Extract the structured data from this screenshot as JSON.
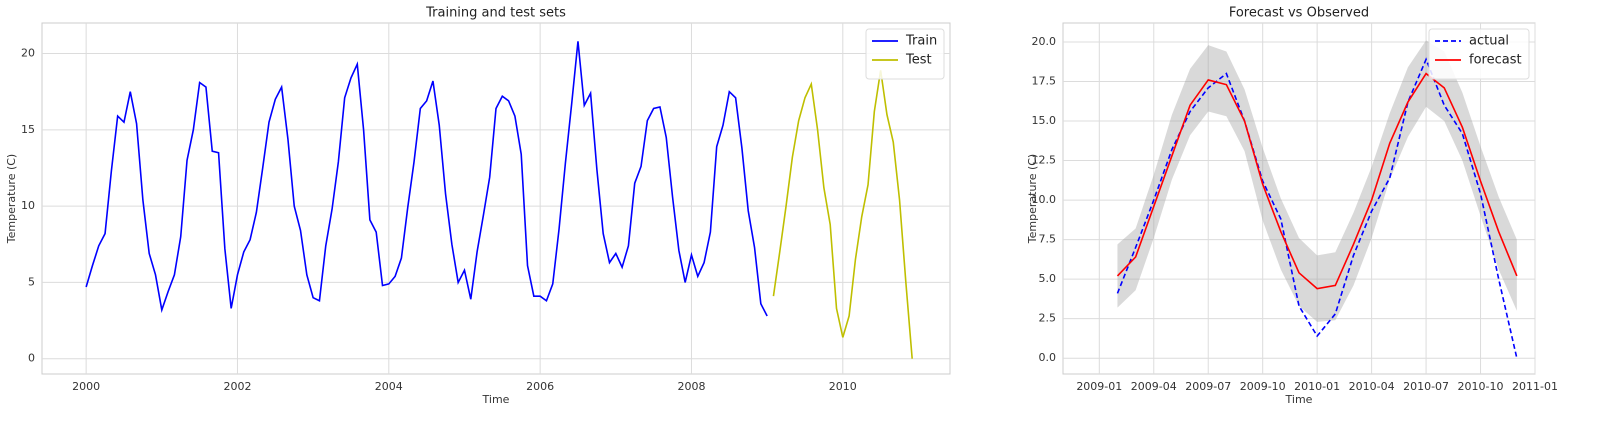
{
  "chart_data": [
    {
      "type": "line",
      "title": "Training and test sets",
      "xlabel": "Time",
      "ylabel": "Temperature (C)",
      "x_train": [
        "2000-01",
        "2000-02",
        "2000-03",
        "2000-04",
        "2000-05",
        "2000-06",
        "2000-07",
        "2000-08",
        "2000-09",
        "2000-10",
        "2000-11",
        "2000-12",
        "2001-01",
        "2001-02",
        "2001-03",
        "2001-04",
        "2001-05",
        "2001-06",
        "2001-07",
        "2001-08",
        "2001-09",
        "2001-10",
        "2001-11",
        "2001-12",
        "2002-01",
        "2002-02",
        "2002-03",
        "2002-04",
        "2002-05",
        "2002-06",
        "2002-07",
        "2002-08",
        "2002-09",
        "2002-10",
        "2002-11",
        "2002-12",
        "2003-01",
        "2003-02",
        "2003-03",
        "2003-04",
        "2003-05",
        "2003-06",
        "2003-07",
        "2003-08",
        "2003-09",
        "2003-10",
        "2003-11",
        "2003-12",
        "2004-01",
        "2004-02",
        "2004-03",
        "2004-04",
        "2004-05",
        "2004-06",
        "2004-07",
        "2004-08",
        "2004-09",
        "2004-10",
        "2004-11",
        "2004-12",
        "2005-01",
        "2005-02",
        "2005-03",
        "2005-04",
        "2005-05",
        "2005-06",
        "2005-07",
        "2005-08",
        "2005-09",
        "2005-10",
        "2005-11",
        "2005-12",
        "2006-01",
        "2006-02",
        "2006-03",
        "2006-04",
        "2006-05",
        "2006-06",
        "2006-07",
        "2006-08",
        "2006-09",
        "2006-10",
        "2006-11",
        "2006-12",
        "2007-01",
        "2007-02",
        "2007-03",
        "2007-04",
        "2007-05",
        "2007-06",
        "2007-07",
        "2007-08",
        "2007-09",
        "2007-10",
        "2007-11",
        "2007-12",
        "2008-01",
        "2008-02",
        "2008-03",
        "2008-04",
        "2008-05",
        "2008-06",
        "2008-07",
        "2008-08",
        "2008-09",
        "2008-10",
        "2008-11",
        "2008-12",
        "2009-01"
      ],
      "x_test": [
        "2009-02",
        "2009-03",
        "2009-04",
        "2009-05",
        "2009-06",
        "2009-07",
        "2009-08",
        "2009-09",
        "2009-10",
        "2009-11",
        "2009-12",
        "2010-01",
        "2010-02",
        "2010-03",
        "2010-04",
        "2010-05",
        "2010-06",
        "2010-07",
        "2010-08",
        "2010-09",
        "2010-10",
        "2010-11",
        "2010-12"
      ],
      "series": [
        {
          "name": "Train",
          "color": "#0000ff",
          "linestyle": "solid",
          "x_key": "x_train",
          "values": [
            4.7,
            6.1,
            7.4,
            8.2,
            12.3,
            15.9,
            15.5,
            17.5,
            15.4,
            10.4,
            6.9,
            5.5,
            3.2,
            4.4,
            5.5,
            8.0,
            13.0,
            15.0,
            18.1,
            17.8,
            13.6,
            13.5,
            7.2,
            3.3,
            5.5,
            7.0,
            7.8,
            9.6,
            12.5,
            15.5,
            17.0,
            17.8,
            14.4,
            10.0,
            8.4,
            5.5,
            4.0,
            3.8,
            7.4,
            9.8,
            12.9,
            17.1,
            18.4,
            19.3,
            15.0,
            9.1,
            8.3,
            4.8,
            4.9,
            5.4,
            6.6,
            9.9,
            12.9,
            16.4,
            16.9,
            18.2,
            15.3,
            10.8,
            7.5,
            5.0,
            5.8,
            3.9,
            7.0,
            9.4,
            11.9,
            16.4,
            17.2,
            16.9,
            15.9,
            13.4,
            6.1,
            4.1,
            4.1,
            3.8,
            4.9,
            8.5,
            12.8,
            16.7,
            20.8,
            16.6,
            17.4,
            12.4,
            8.2,
            6.3,
            6.9,
            6.0,
            7.4,
            11.5,
            12.6,
            15.6,
            16.4,
            16.5,
            14.5,
            10.6,
            7.1,
            5.0,
            6.8,
            5.4,
            6.3,
            8.3,
            13.9,
            15.3,
            17.5,
            17.1,
            13.8,
            9.7,
            7.3,
            3.6,
            2.8
          ]
        },
        {
          "name": "Test",
          "color": "#bfbf00",
          "linestyle": "solid",
          "x_key": "x_test",
          "values": [
            4.1,
            7.0,
            10.0,
            13.2,
            15.6,
            17.1,
            18.0,
            15.0,
            11.2,
            8.8,
            3.3,
            1.4,
            2.8,
            6.5,
            9.3,
            11.4,
            16.2,
            18.9,
            16.0,
            14.2,
            10.4,
            5.0,
            0.0
          ]
        }
      ],
      "xlim": [
        "1999-06",
        "2011-06"
      ],
      "xticks": [
        {
          "value": "2000-01",
          "label": "2000"
        },
        {
          "value": "2002-01",
          "label": "2002"
        },
        {
          "value": "2004-01",
          "label": "2004"
        },
        {
          "value": "2006-01",
          "label": "2006"
        },
        {
          "value": "2008-01",
          "label": "2008"
        },
        {
          "value": "2010-01",
          "label": "2010"
        }
      ],
      "ylim": [
        -1,
        22
      ],
      "yticks": [
        0,
        5,
        10,
        15,
        20
      ],
      "grid": true,
      "legend": "upper right"
    },
    {
      "type": "line",
      "title": "Forecast vs Observed",
      "xlabel": "Time",
      "ylabel": "Temperature (C)",
      "x": [
        "2009-02",
        "2009-03",
        "2009-04",
        "2009-05",
        "2009-06",
        "2009-07",
        "2009-08",
        "2009-09",
        "2009-10",
        "2009-11",
        "2009-12",
        "2010-01",
        "2010-02",
        "2010-03",
        "2010-04",
        "2010-05",
        "2010-06",
        "2010-07",
        "2010-08",
        "2010-09",
        "2010-10",
        "2010-11",
        "2010-12"
      ],
      "series": [
        {
          "name": "actual",
          "color": "#0000ff",
          "linestyle": "dashed",
          "values": [
            4.1,
            7.0,
            10.0,
            13.2,
            15.6,
            17.1,
            18.0,
            15.0,
            11.2,
            8.8,
            3.3,
            1.4,
            2.8,
            6.5,
            9.3,
            11.4,
            16.2,
            18.9,
            16.0,
            14.2,
            10.4,
            5.0,
            0.0
          ]
        },
        {
          "name": "forecast",
          "color": "#ff0000",
          "linestyle": "solid",
          "values": [
            5.2,
            6.4,
            9.6,
            12.8,
            16.0,
            17.6,
            17.3,
            15.0,
            11.0,
            8.0,
            5.4,
            4.4,
            4.6,
            7.2,
            10.0,
            13.6,
            16.2,
            18.0,
            17.1,
            14.6,
            11.2,
            8.0,
            5.2
          ]
        }
      ],
      "band": {
        "color": "#a0a0a0",
        "lower": [
          3.2,
          4.3,
          7.6,
          11.3,
          14.1,
          15.6,
          15.3,
          13.1,
          8.7,
          5.6,
          3.3,
          2.3,
          2.4,
          4.6,
          7.6,
          11.3,
          14.0,
          15.9,
          15.0,
          12.5,
          9.0,
          5.6,
          3.0
        ],
        "upper": [
          7.2,
          8.2,
          11.6,
          15.4,
          18.3,
          19.8,
          19.4,
          17.0,
          13.3,
          10.1,
          7.6,
          6.5,
          6.7,
          9.2,
          12.1,
          15.5,
          18.4,
          20.1,
          19.4,
          16.8,
          13.4,
          10.2,
          7.5
        ]
      },
      "xlim": [
        "2008-11",
        "2011-01"
      ],
      "xticks": [
        "2009-01",
        "2009-04",
        "2009-07",
        "2009-10",
        "2010-01",
        "2010-04",
        "2010-07",
        "2010-10",
        "2011-01"
      ],
      "ylim": [
        -1,
        21.2
      ],
      "yticks": [
        {
          "value": 0,
          "label": "0.0"
        },
        {
          "value": 2.5,
          "label": "2.5"
        },
        {
          "value": 5,
          "label": "5.0"
        },
        {
          "value": 7.5,
          "label": "7.5"
        },
        {
          "value": 10,
          "label": "10.0"
        },
        {
          "value": 12.5,
          "label": "12.5"
        },
        {
          "value": 15,
          "label": "15.0"
        },
        {
          "value": 17.5,
          "label": "17.5"
        },
        {
          "value": 20,
          "label": "20.0"
        }
      ],
      "grid": true,
      "legend": "upper right"
    }
  ]
}
